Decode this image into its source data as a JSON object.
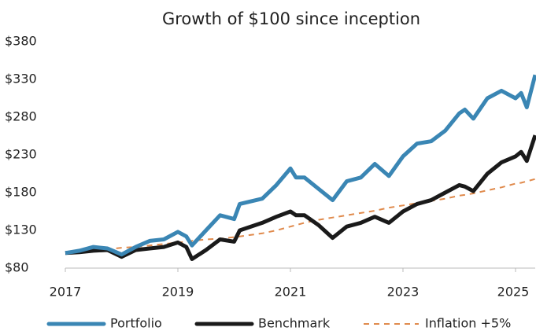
{
  "chart_data": {
    "type": "line",
    "title": "Growth of $100 since inception",
    "x": [
      2017,
      2017.25,
      2017.5,
      2017.75,
      2018,
      2018.25,
      2018.5,
      2018.75,
      2019,
      2019.15,
      2019.25,
      2019.5,
      2019.75,
      2020,
      2020.1,
      2020.5,
      2020.75,
      2021,
      2021.1,
      2021.25,
      2021.5,
      2021.75,
      2022,
      2022.25,
      2022.5,
      2022.75,
      2023,
      2023.25,
      2023.5,
      2023.75,
      2024,
      2024.1,
      2024.25,
      2024.5,
      2024.75,
      2025,
      2025.1,
      2025.2,
      2025.35
    ],
    "series": [
      {
        "name": "Portfolio",
        "color": "#3a86b4",
        "width": 5,
        "dashed": false,
        "values": [
          100,
          103,
          108,
          106,
          98,
          108,
          116,
          118,
          128,
          122,
          110,
          130,
          150,
          145,
          165,
          172,
          190,
          212,
          200,
          200,
          185,
          170,
          195,
          200,
          218,
          202,
          228,
          245,
          248,
          262,
          285,
          290,
          278,
          305,
          315,
          305,
          312,
          293,
          336
        ]
      },
      {
        "name": "Benchmark",
        "color": "#1a1a1a",
        "width": 5,
        "dashed": false,
        "values": [
          100,
          101,
          103,
          104,
          95,
          104,
          106,
          108,
          114,
          108,
          92,
          104,
          118,
          115,
          130,
          140,
          148,
          155,
          150,
          150,
          137,
          120,
          135,
          140,
          148,
          140,
          155,
          165,
          170,
          180,
          190,
          188,
          182,
          205,
          220,
          228,
          234,
          222,
          256
        ]
      },
      {
        "name": "Inflation +5%",
        "color": "#e08a4c",
        "width": 2,
        "dashed": true,
        "values": [
          100,
          102,
          103,
          105,
          107,
          108,
          110,
          112,
          114,
          115,
          116,
          118,
          119,
          121,
          122,
          126,
          130,
          135,
          137,
          140,
          144,
          147,
          150,
          153,
          156,
          160,
          163,
          166,
          169,
          172,
          176,
          177,
          179,
          183,
          187,
          192,
          193,
          195,
          198
        ]
      }
    ],
    "xlim": [
      2017,
      2025.35
    ],
    "xticks": [
      2017,
      2019,
      2021,
      2023,
      2025
    ],
    "ylim": [
      80,
      380
    ],
    "yticks": [
      {
        "value": 80,
        "label": "$80"
      },
      {
        "value": 130,
        "label": "$130"
      },
      {
        "value": 180,
        "label": "$180"
      },
      {
        "value": 230,
        "label": "$230"
      },
      {
        "value": 280,
        "label": "$280"
      },
      {
        "value": 330,
        "label": "$330"
      },
      {
        "value": 380,
        "label": "$380"
      }
    ],
    "grid": false,
    "legend": "bottom"
  }
}
